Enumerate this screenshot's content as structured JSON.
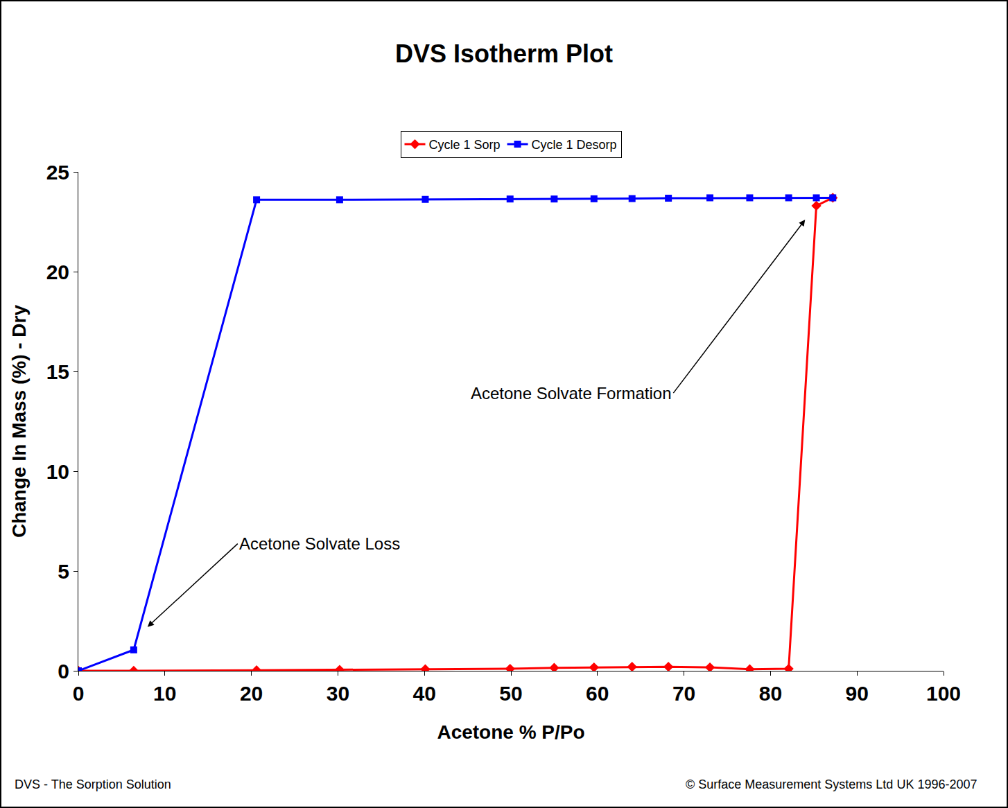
{
  "chart_data": {
    "type": "line",
    "title": "DVS Isotherm Plot",
    "x_label": "Acetone % P/Po",
    "y_label": "Change In Mass (%) - Dry",
    "xlim": [
      0,
      100
    ],
    "xticks": [
      0,
      10,
      20,
      30,
      40,
      50,
      60,
      70,
      80,
      90,
      100
    ],
    "ylim": [
      0,
      25
    ],
    "yticks": [
      0,
      5,
      10,
      15,
      20,
      25
    ],
    "grid": false,
    "legend": "top",
    "series": [
      {
        "name": "Cycle 1 Sorp",
        "color": "#ff0000",
        "marker": "diamond",
        "line_style": "solid",
        "x": [
          0,
          6.4,
          20.6,
          30.2,
          40.1,
          49.9,
          55,
          59.6,
          64,
          68.2,
          73,
          77.6,
          82.1,
          85.3,
          87.2
        ],
        "values": [
          0,
          0,
          0.03,
          0.05,
          0.08,
          0.1,
          0.15,
          0.17,
          0.2,
          0.2,
          0.17,
          0.08,
          0.1,
          23.3,
          23.7
        ]
      },
      {
        "name": "Cycle 1 Desorp",
        "color": "#0000ff",
        "marker": "square",
        "line_style": "solid",
        "x": [
          87.2,
          85.3,
          82.1,
          77.6,
          73,
          68.2,
          64,
          59.6,
          55,
          49.9,
          40.1,
          30.2,
          20.6,
          6.4,
          0
        ],
        "values": [
          23.7,
          23.7,
          23.7,
          23.7,
          23.7,
          23.68,
          23.66,
          23.65,
          23.64,
          23.64,
          23.62,
          23.6,
          23.6,
          1.05,
          0
        ]
      }
    ],
    "annotations": [
      {
        "text": "Acetone Solvate Formation",
        "x": 84,
        "y": 22.6
      },
      {
        "text": "Acetone Solvate Loss",
        "x": 8,
        "y": 2.2
      }
    ],
    "footnotes": {
      "left": "DVS - The Sorption Solution",
      "right": "© Surface Measurement Systems Ltd UK 1996-2007"
    }
  }
}
